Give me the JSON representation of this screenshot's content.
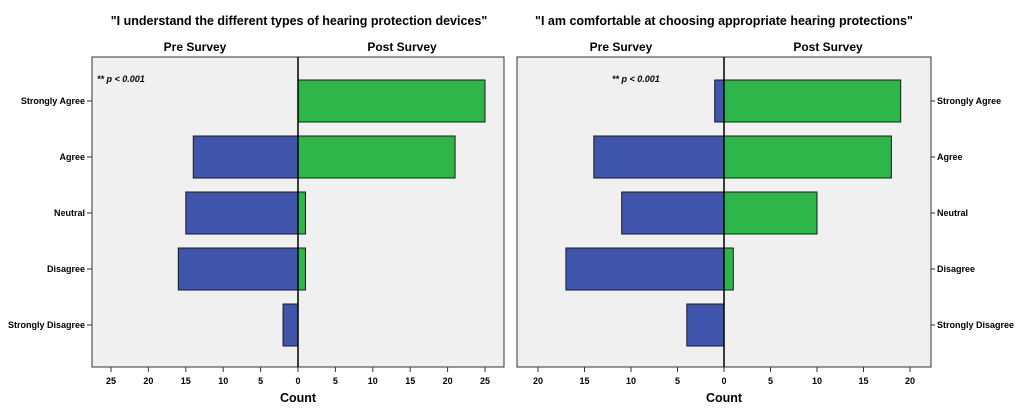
{
  "chart_data": [
    {
      "type": "bar",
      "orientation": "horizontal-diverging",
      "title": "\"I understand the different types of hearing protection devices\"",
      "left_label": "Pre Survey",
      "right_label": "Post Survey",
      "xlabel": "Count",
      "annotation": "** p < 0.001",
      "xlim": [
        -27,
        27
      ],
      "ticks": [
        25,
        20,
        15,
        10,
        5,
        0,
        5,
        10,
        15,
        20,
        25
      ],
      "categories": [
        "Strongly Agree",
        "Agree",
        "Neutral",
        "Disagree",
        "Strongly Disagree"
      ],
      "category_label_side": "left",
      "series": [
        {
          "name": "Pre Survey",
          "color": "#3f56ac",
          "values": [
            0,
            14,
            15,
            16,
            2
          ]
        },
        {
          "name": "Post Survey",
          "color": "#2fb64a",
          "values": [
            25,
            21,
            1,
            1,
            0
          ]
        }
      ],
      "grid": false
    },
    {
      "type": "bar",
      "orientation": "horizontal-diverging",
      "title": "\"I am comfortable at choosing appropriate hearing protections\"",
      "left_label": "Pre Survey",
      "right_label": "Post Survey",
      "xlabel": "Count",
      "annotation": "** p < 0.001",
      "xlim": [
        -22.5,
        22.5
      ],
      "ticks": [
        20,
        15,
        10,
        5,
        0,
        5,
        10,
        15,
        20
      ],
      "categories": [
        "Strongly Agree",
        "Agree",
        "Neutral",
        "Disagree",
        "Strongly Disagree"
      ],
      "category_label_side": "right",
      "series": [
        {
          "name": "Pre Survey",
          "color": "#3f56ac",
          "values": [
            1,
            14,
            11,
            17,
            4
          ]
        },
        {
          "name": "Post Survey",
          "color": "#2fb64a",
          "values": [
            19,
            18,
            10,
            1,
            0
          ]
        }
      ],
      "grid": false
    }
  ]
}
